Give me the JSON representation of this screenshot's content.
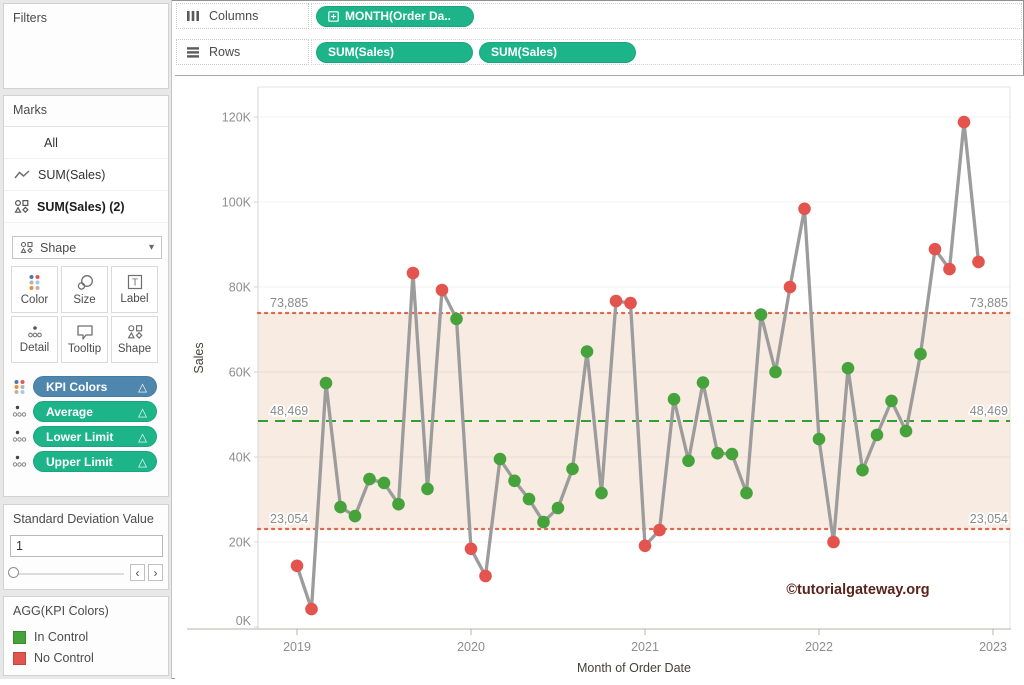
{
  "ui": {
    "delta": "△",
    "caret": "▾",
    "spin_left": "‹",
    "spin_right": "›"
  },
  "shelves": {
    "columns": {
      "label": "Columns",
      "pill": {
        "label": "MONTH(Order Da.."
      }
    },
    "rows": {
      "label": "Rows",
      "pills": [
        {
          "label": "SUM(Sales)"
        },
        {
          "label": "SUM(Sales)"
        }
      ]
    },
    "pill_color": "#1db489"
  },
  "sidebar": {
    "filters": {
      "title": "Filters"
    },
    "marks": {
      "title": "Marks",
      "items": [
        {
          "label": "All"
        },
        {
          "label": "SUM(Sales)"
        },
        {
          "label": "SUM(Sales) (2)"
        }
      ],
      "type_selector": {
        "label": "Shape"
      },
      "buttons": [
        {
          "label": "Color"
        },
        {
          "label": "Size"
        },
        {
          "label": "Label"
        },
        {
          "label": "Detail"
        },
        {
          "label": "Tooltip"
        },
        {
          "label": "Shape"
        }
      ],
      "pills": [
        {
          "label": "KPI Colors",
          "color": "#4e86ad"
        },
        {
          "label": "Average",
          "color": "#1db489"
        },
        {
          "label": "Lower Limit",
          "color": "#1db489"
        },
        {
          "label": "Upper Limit",
          "color": "#1db489"
        }
      ]
    },
    "parameter": {
      "title": "Standard Deviation Value",
      "value": "1"
    },
    "legend": {
      "title": "AGG(KPI Colors)",
      "items": [
        {
          "label": "In Control",
          "color": "#46a33c"
        },
        {
          "label": "No Control",
          "color": "#e2544d"
        }
      ]
    }
  },
  "chart_data": {
    "type": "line",
    "xlabel": "Month of Order Date",
    "ylabel": "Sales",
    "watermark": "©tutorialgateway.org",
    "ylim": [
      0,
      127000
    ],
    "yticks": [
      0,
      20000,
      40000,
      60000,
      80000,
      100000,
      120000
    ],
    "x_year_ticks": [
      2019,
      2020,
      2021,
      2022,
      2023
    ],
    "grid": true,
    "months": [
      "Jan 2019",
      "Feb 2019",
      "Mar 2019",
      "Apr 2019",
      "May 2019",
      "Jun 2019",
      "Jul 2019",
      "Aug 2019",
      "Sep 2019",
      "Oct 2019",
      "Nov 2019",
      "Dec 2019",
      "Jan 2020",
      "Feb 2020",
      "Mar 2020",
      "Apr 2020",
      "May 2020",
      "Jun 2020",
      "Jul 2020",
      "Aug 2020",
      "Sep 2020",
      "Oct 2020",
      "Nov 2020",
      "Dec 2020",
      "Jan 2021",
      "Feb 2021",
      "Mar 2021",
      "Apr 2021",
      "May 2021",
      "Jun 2021",
      "Jul 2021",
      "Aug 2021",
      "Sep 2021",
      "Oct 2021",
      "Nov 2021",
      "Dec 2021",
      "Jan 2022",
      "Feb 2022",
      "Mar 2022",
      "Apr 2022",
      "May 2022",
      "Jun 2022",
      "Jul 2022",
      "Aug 2022",
      "Sep 2022",
      "Oct 2022",
      "Nov 2022",
      "Dec 2022"
    ],
    "values": [
      14400,
      4200,
      57400,
      28200,
      26100,
      34800,
      33900,
      28900,
      83300,
      32500,
      79300,
      72500,
      18400,
      12000,
      39500,
      34400,
      30100,
      24700,
      28000,
      37200,
      64800,
      31500,
      76700,
      76200,
      19100,
      22800,
      53600,
      39100,
      57500,
      40900,
      40700,
      31500,
      73500,
      60000,
      80000,
      98400,
      44200,
      20000,
      60900,
      36900,
      45200,
      53200,
      46100,
      64200,
      88900,
      84200,
      118800,
      85900
    ],
    "point_status": [
      "no",
      "no",
      "in",
      "in",
      "in",
      "in",
      "in",
      "in",
      "no",
      "in",
      "no",
      "in",
      "no",
      "no",
      "in",
      "in",
      "in",
      "in",
      "in",
      "in",
      "in",
      "in",
      "no",
      "no",
      "no",
      "no",
      "in",
      "in",
      "in",
      "in",
      "in",
      "in",
      "in",
      "in",
      "no",
      "no",
      "in",
      "no",
      "in",
      "in",
      "in",
      "in",
      "in",
      "in",
      "no",
      "no",
      "no",
      "no"
    ],
    "ref_lines": {
      "upper": {
        "value": 73885,
        "label": "73,885"
      },
      "average": {
        "value": 48469,
        "label": "48,469"
      },
      "lower": {
        "value": 23054,
        "label": "23,054"
      }
    },
    "colors": {
      "in_control": "#46a33c",
      "no_control": "#e2544d",
      "line": "#9c9c9c",
      "band": "#f8ebe2",
      "average_line": "#2fa12e",
      "limit_line": "#e0694b",
      "grid": "rgba(0,0,0,0.055)",
      "axis": "#b9b2aa",
      "axis_light": "#e3e3e3",
      "tick_text": "#8e8e8e",
      "ref_text": "#8a8a8a",
      "title_text": "#45413c",
      "watermark": "#5a241c"
    }
  }
}
